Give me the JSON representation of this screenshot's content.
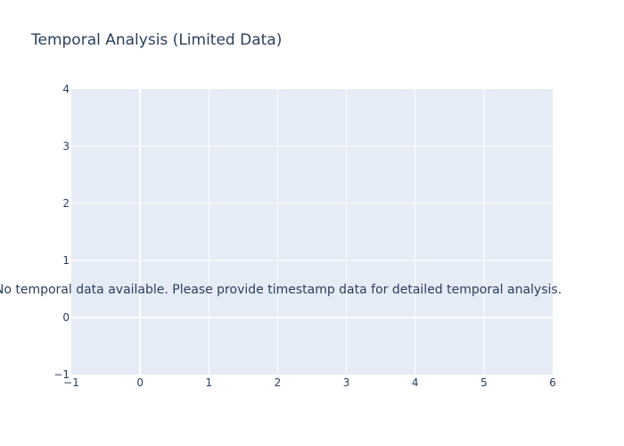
{
  "chart_data": {
    "type": "scatter",
    "title": "Temporal Analysis (Limited Data)",
    "xlabel": "",
    "ylabel": "",
    "xlim": [
      -1,
      6
    ],
    "ylim": [
      -1,
      4
    ],
    "x_ticks": [
      -1,
      0,
      1,
      2,
      3,
      4,
      5,
      6
    ],
    "y_ticks": [
      -1,
      0,
      1,
      2,
      3,
      4
    ],
    "x_tick_labels": [
      "−1",
      "0",
      "1",
      "2",
      "3",
      "4",
      "5",
      "6"
    ],
    "y_tick_labels": [
      "−1",
      "0",
      "1",
      "2",
      "3",
      "4"
    ],
    "grid": true,
    "series": [],
    "annotations": [
      {
        "text": "No temporal data available. Please provide timestamp data for detailed temporal analysis.",
        "x": 2.5,
        "y": 0.5
      }
    ]
  },
  "colors": {
    "plot_background": "#e5ecf6",
    "grid": "#ffffff",
    "text": "#2a3f5f"
  }
}
